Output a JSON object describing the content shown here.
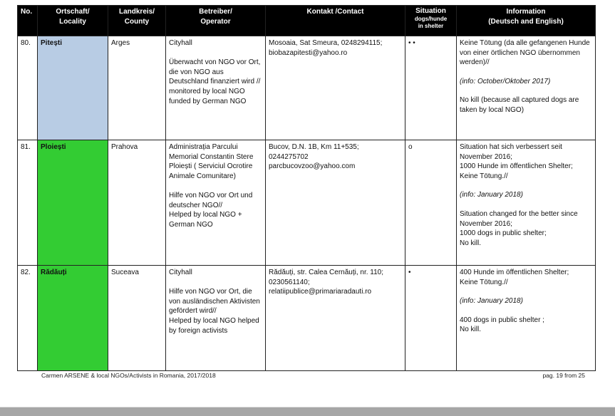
{
  "table": {
    "headers": {
      "no": "No.",
      "locality": "Ortschaft/\nLocality",
      "county": "Landkreis/\nCounty",
      "operator": "Betreiber/\nOperator",
      "contact": "Kontakt /Contact",
      "situation_title": "Situation",
      "situation_sub": "dogs/hunde\nin shelter",
      "information": "Information\n(Deutsch and English)"
    },
    "rows": [
      {
        "no": "80.",
        "locality": "Pitești",
        "locality_color": "#b8cce4",
        "county": "Arges",
        "operator": "Cityhall\n\nÜberwacht von NGO vor Ort, die von NGO aus Deutschland finanziert wird //\nmonitored by local NGO funded by German NGO",
        "contact": "Mosoaia, Sat Smeura, 0248294115;\nbiobazapitesti@yahoo.ro",
        "situation": "• •",
        "info_de": "Keine Tötung (da alle gefangenen Hunde von einer örtlichen NGO übernommen werden)//",
        "info_date": "(info: October/Oktober 2017)",
        "info_en": "No kill (because all captured dogs are taken by local NGO)"
      },
      {
        "no": "81.",
        "locality": "Ploiești",
        "locality_color": "#33cc33",
        "county": "Prahova",
        "operator": "Administrația Parcului Memorial Constantin Stere\nPloiești ( Serviciul Ocrotire Animale Comunitare)\n\nHilfe von NGO vor Ort und deutscher NGO//\nHelped by local NGO + German NGO",
        "contact": "Bucov, D.N. 1B, Km 11+535;\n0244275702\nparcbucovzoo@yahoo.com",
        "situation": "o",
        "info_de": "Situation hat sich verbessert seit November 2016;\n1000 Hunde im öffentlichen Shelter;\nKeine Tötung.//",
        "info_date": "(info: January 2018)",
        "info_en": "Situation changed  for the better since November 2016;\n1000 dogs in public shelter;\nNo kill."
      },
      {
        "no": "82.",
        "locality": "Rădăuți",
        "locality_color": "#33cc33",
        "county": "Suceava",
        "operator": "Cityhall\n\nHilfe von NGO vor Ort, die von ausländischen Aktivisten gefördert wird//\nHelped by local NGO helped by foreign activists",
        "contact": "Rădăuți, str. Calea Cernăuți, nr. 110;\n0230561140;\nrelatiipublice@primariaradauti.ro",
        "situation": "•",
        "info_de": "400 Hunde im öffentlichen Shelter;\nKeine Tötung.//",
        "info_date": "(info: January 2018)",
        "info_en": "400 dogs in public shelter ;\nNo kill."
      }
    ]
  },
  "footer": {
    "left": "Carmen ARSENE & local NGOs/Activists in Romania, 2017/2018",
    "right": "pag. 19 from 25"
  }
}
